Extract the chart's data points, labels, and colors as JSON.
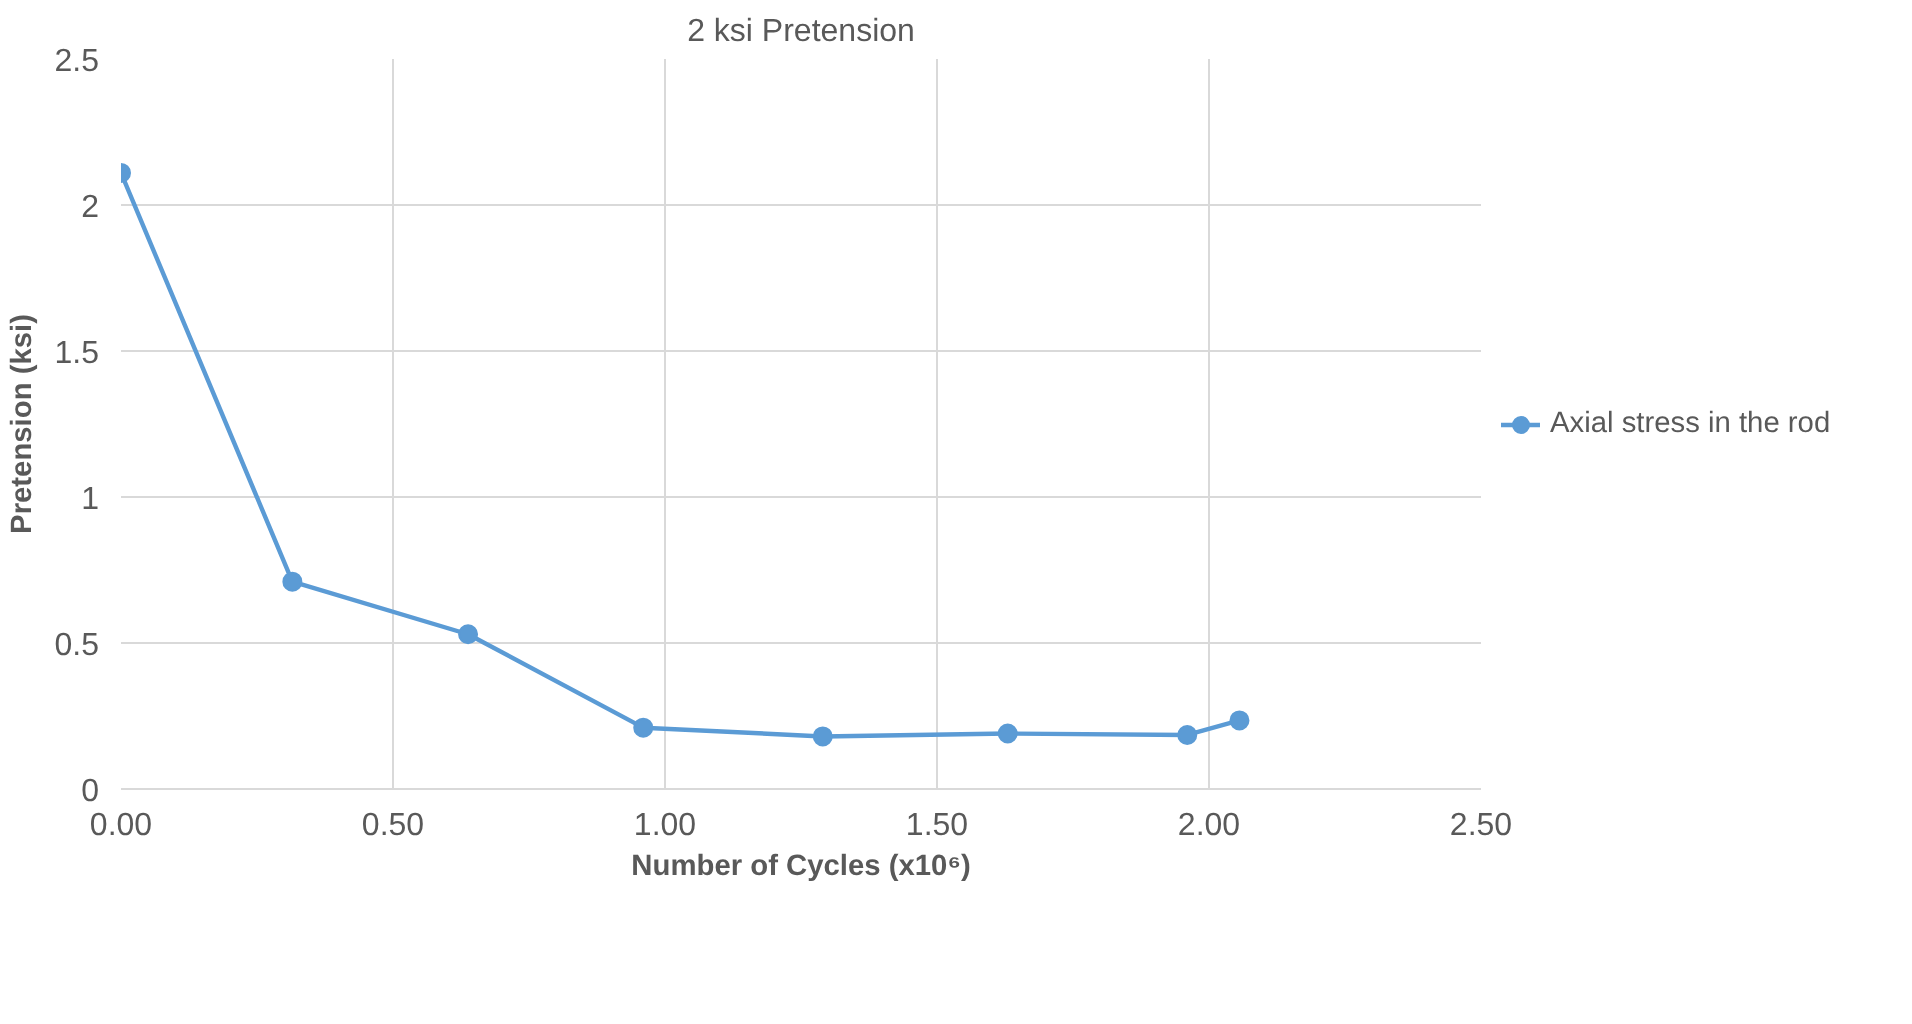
{
  "chart_data": {
    "type": "line",
    "title": "2 ksi Pretension",
    "xlabel": "Number of Cycles (x10⁶)",
    "ylabel": "Pretension (ksi)",
    "x": [
      0.0,
      0.315,
      0.638,
      0.96,
      1.29,
      1.63,
      1.96,
      2.056
    ],
    "series": [
      {
        "name": "Axial stress in the rod",
        "color": "#5b9bd5",
        "values": [
          2.11,
          0.71,
          0.53,
          0.21,
          0.18,
          0.19,
          0.185,
          0.235
        ]
      }
    ],
    "xlim": [
      0,
      2.5
    ],
    "xticks": [
      {
        "value": 0,
        "label": "0.00"
      },
      {
        "value": 0.5,
        "label": "0.50"
      },
      {
        "value": 1,
        "label": "1.00"
      },
      {
        "value": 1.5,
        "label": "1.50"
      },
      {
        "value": 2,
        "label": "2.00"
      },
      {
        "value": 2.5,
        "label": "2.50"
      }
    ],
    "ylim": [
      0,
      2.5
    ],
    "yticks": [
      0,
      0.5,
      1,
      1.5,
      2,
      2.5
    ],
    "grid": true,
    "legend": "right",
    "marker": "circle",
    "line_style": "solid"
  }
}
